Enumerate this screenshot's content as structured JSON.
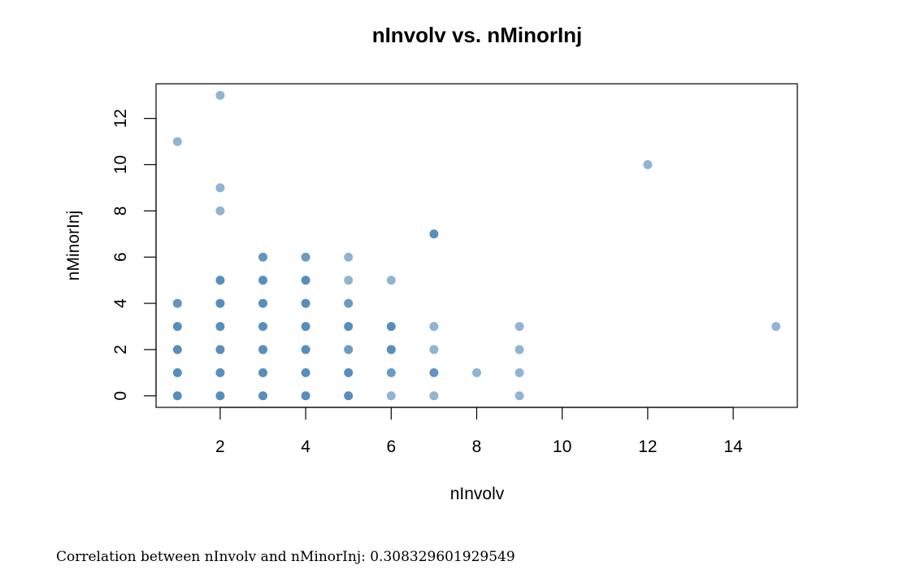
{
  "chart_data": {
    "type": "scatter",
    "title": "nInvolv  vs. nMinorInj",
    "xlabel": "nInvolv",
    "ylabel": "nMinorInj",
    "xlim": [
      0.5,
      15.5
    ],
    "ylim": [
      -0.5,
      13.5
    ],
    "xticks": [
      2,
      4,
      6,
      8,
      10,
      12,
      14
    ],
    "yticks": [
      0,
      2,
      4,
      6,
      8,
      10,
      12
    ],
    "grid": false,
    "point_color": "#4682b4",
    "points": [
      {
        "x": 1,
        "y": 0,
        "alpha": 0.9
      },
      {
        "x": 1,
        "y": 1,
        "alpha": 0.9
      },
      {
        "x": 1,
        "y": 2,
        "alpha": 0.9
      },
      {
        "x": 1,
        "y": 3,
        "alpha": 0.9
      },
      {
        "x": 1,
        "y": 4,
        "alpha": 0.85
      },
      {
        "x": 1,
        "y": 11,
        "alpha": 0.6
      },
      {
        "x": 2,
        "y": 0,
        "alpha": 0.9
      },
      {
        "x": 2,
        "y": 1,
        "alpha": 0.9
      },
      {
        "x": 2,
        "y": 2,
        "alpha": 0.9
      },
      {
        "x": 2,
        "y": 3,
        "alpha": 0.9
      },
      {
        "x": 2,
        "y": 4,
        "alpha": 0.9
      },
      {
        "x": 2,
        "y": 5,
        "alpha": 0.9
      },
      {
        "x": 2,
        "y": 8,
        "alpha": 0.6
      },
      {
        "x": 2,
        "y": 9,
        "alpha": 0.6
      },
      {
        "x": 2,
        "y": 13,
        "alpha": 0.6
      },
      {
        "x": 3,
        "y": 0,
        "alpha": 0.9
      },
      {
        "x": 3,
        "y": 1,
        "alpha": 0.9
      },
      {
        "x": 3,
        "y": 2,
        "alpha": 0.9
      },
      {
        "x": 3,
        "y": 3,
        "alpha": 0.9
      },
      {
        "x": 3,
        "y": 4,
        "alpha": 0.9
      },
      {
        "x": 3,
        "y": 5,
        "alpha": 0.9
      },
      {
        "x": 3,
        "y": 6,
        "alpha": 0.85
      },
      {
        "x": 4,
        "y": 0,
        "alpha": 0.9
      },
      {
        "x": 4,
        "y": 1,
        "alpha": 0.9
      },
      {
        "x": 4,
        "y": 2,
        "alpha": 0.9
      },
      {
        "x": 4,
        "y": 3,
        "alpha": 0.9
      },
      {
        "x": 4,
        "y": 4,
        "alpha": 0.9
      },
      {
        "x": 4,
        "y": 5,
        "alpha": 0.9
      },
      {
        "x": 4,
        "y": 6,
        "alpha": 0.8
      },
      {
        "x": 5,
        "y": 0,
        "alpha": 0.9
      },
      {
        "x": 5,
        "y": 1,
        "alpha": 0.9
      },
      {
        "x": 5,
        "y": 2,
        "alpha": 0.8
      },
      {
        "x": 5,
        "y": 3,
        "alpha": 0.9
      },
      {
        "x": 5,
        "y": 4,
        "alpha": 0.8
      },
      {
        "x": 5,
        "y": 5,
        "alpha": 0.6
      },
      {
        "x": 5,
        "y": 6,
        "alpha": 0.6
      },
      {
        "x": 6,
        "y": 0,
        "alpha": 0.6
      },
      {
        "x": 6,
        "y": 1,
        "alpha": 0.8
      },
      {
        "x": 6,
        "y": 2,
        "alpha": 0.9
      },
      {
        "x": 6,
        "y": 3,
        "alpha": 0.9
      },
      {
        "x": 6,
        "y": 5,
        "alpha": 0.6
      },
      {
        "x": 7,
        "y": 0,
        "alpha": 0.6
      },
      {
        "x": 7,
        "y": 1,
        "alpha": 0.85
      },
      {
        "x": 7,
        "y": 2,
        "alpha": 0.6
      },
      {
        "x": 7,
        "y": 3,
        "alpha": 0.6
      },
      {
        "x": 7,
        "y": 7,
        "alpha": 0.9
      },
      {
        "x": 8,
        "y": 1,
        "alpha": 0.6
      },
      {
        "x": 9,
        "y": 0,
        "alpha": 0.6
      },
      {
        "x": 9,
        "y": 1,
        "alpha": 0.6
      },
      {
        "x": 9,
        "y": 2,
        "alpha": 0.6
      },
      {
        "x": 9,
        "y": 3,
        "alpha": 0.6
      },
      {
        "x": 12,
        "y": 10,
        "alpha": 0.6
      },
      {
        "x": 15,
        "y": 3,
        "alpha": 0.6
      }
    ]
  },
  "caption": "Correlation between nInvolv and nMinorInj: 0.308329601929549"
}
